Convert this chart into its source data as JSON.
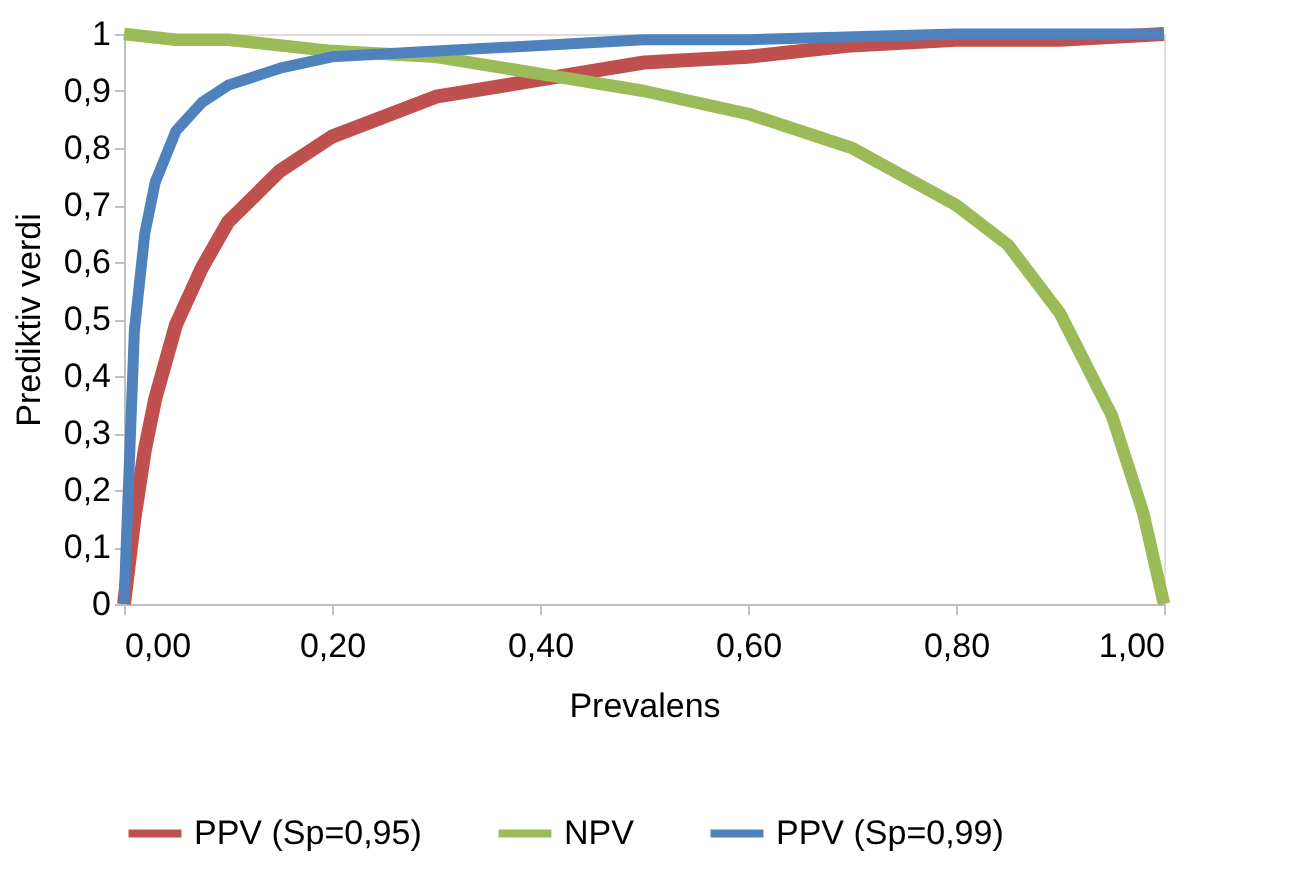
{
  "chart_data": {
    "type": "line",
    "xlabel": "Prevalens",
    "ylabel": "Prediktiv verdi",
    "xlim": [
      0,
      1
    ],
    "ylim": [
      0,
      1
    ],
    "xticks": [
      {
        "value": 0,
        "label": "0,00"
      },
      {
        "value": 0.2,
        "label": "0,20"
      },
      {
        "value": 0.4,
        "label": "0,40"
      },
      {
        "value": 0.6,
        "label": "0,60"
      },
      {
        "value": 0.8,
        "label": "0,80"
      },
      {
        "value": 1,
        "label": "1,00"
      }
    ],
    "yticks": [
      0,
      {
        "value": 0.1,
        "label": "0,1"
      },
      {
        "value": 0.2,
        "label": "0,2"
      },
      {
        "value": 0.3,
        "label": "0,3"
      },
      {
        "value": 0.4,
        "label": "0,4"
      },
      {
        "value": 0.5,
        "label": "0,5"
      },
      {
        "value": 0.6,
        "label": "0,6"
      },
      {
        "value": 0.7,
        "label": "0,7"
      },
      {
        "value": 0.8,
        "label": "0,8"
      },
      {
        "value": 0.9,
        "label": "0,9"
      },
      1
    ],
    "grid": false,
    "legend": "bottom",
    "marker": "none",
    "line_style": "solid",
    "series": [
      {
        "name": "PPV (Sp=0,95)",
        "color": "#c0504d",
        "x": [
          0,
          0.01,
          0.02,
          0.03,
          0.05,
          0.075,
          0.1,
          0.15,
          0.2,
          0.3,
          0.4,
          0.5,
          0.6,
          0.7,
          0.8,
          0.9,
          1
        ],
        "values": [
          0,
          0.15,
          0.27,
          0.36,
          0.49,
          0.59,
          0.67,
          0.76,
          0.82,
          0.89,
          0.92,
          0.95,
          0.96,
          0.98,
          0.99,
          0.99,
          1
        ]
      },
      {
        "name": "NPV",
        "color": "#9bbb59",
        "x": [
          0,
          0.05,
          0.1,
          0.2,
          0.3,
          0.4,
          0.5,
          0.6,
          0.7,
          0.8,
          0.85,
          0.9,
          0.95,
          0.98,
          1
        ],
        "values": [
          1,
          0.99,
          0.99,
          0.97,
          0.96,
          0.93,
          0.9,
          0.86,
          0.8,
          0.7,
          0.63,
          0.51,
          0.33,
          0.16,
          0
        ]
      },
      {
        "name": "PPV (Sp=0,99)",
        "color": "#4f81bd",
        "x": [
          0,
          0.01,
          0.02,
          0.03,
          0.05,
          0.075,
          0.1,
          0.15,
          0.2,
          0.3,
          0.4,
          0.5,
          0.6,
          0.8,
          1
        ],
        "values": [
          0,
          0.48,
          0.65,
          0.74,
          0.83,
          0.88,
          0.91,
          0.94,
          0.96,
          0.97,
          0.98,
          0.99,
          0.99,
          1,
          1
        ]
      }
    ]
  }
}
